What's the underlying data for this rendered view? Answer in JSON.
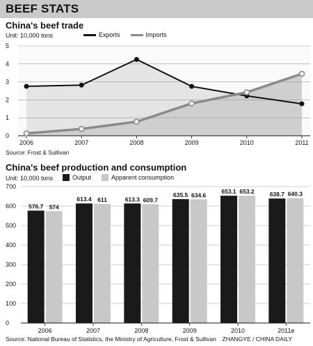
{
  "header": {
    "title": "BEEF STATS"
  },
  "trade": {
    "title": "China's beef trade",
    "unit": "Unit: 10,000 tons",
    "source": "Source: Frost & Sullivan"
  },
  "production": {
    "title": "China's beef production and consumption",
    "unit": "Unit: 10,000 tons",
    "source": "Source: National Bureau of Statistics, the Ministry of Agriculture, Frost & Sullivan",
    "credit": "ZHANGYE / CHINA DAILY"
  },
  "chart_data": [
    {
      "type": "line",
      "title": "China's beef trade",
      "unit": "Unit: 10,000 tons",
      "x": [
        "2006",
        "2007",
        "2008",
        "2009",
        "2010",
        "2011"
      ],
      "ylim": [
        0,
        5
      ],
      "yticks": [
        "0",
        "1",
        "2",
        "3",
        "4",
        "5"
      ],
      "grid": true,
      "series": [
        {
          "name": "Exports",
          "color": "#111111",
          "values": [
            2.75,
            2.82,
            4.25,
            2.75,
            2.22,
            1.78
          ]
        },
        {
          "name": "Imports",
          "color": "#8a8a8a",
          "values": [
            0.13,
            0.38,
            0.78,
            1.8,
            2.42,
            3.45
          ]
        }
      ]
    },
    {
      "type": "bar",
      "title": "China's beef production and consumption",
      "unit": "Unit: 10,000 tons",
      "categories": [
        "2006",
        "2007",
        "2008",
        "2009",
        "2010",
        "2011e"
      ],
      "ylim": [
        0,
        700
      ],
      "yticks": [
        "0",
        "100",
        "200",
        "300",
        "400",
        "500",
        "600",
        "700"
      ],
      "grid": true,
      "series": [
        {
          "name": "Output",
          "color": "#1a1a1a",
          "values": [
            576.7,
            613.4,
            613.3,
            635.5,
            653.1,
            638.7
          ]
        },
        {
          "name": "Apparent consumption",
          "color": "#c8c8c8",
          "values": [
            574,
            611,
            609.7,
            634.6,
            653.2,
            640.3
          ]
        }
      ],
      "data_labels": [
        [
          "576.7",
          "613.4",
          "613.3",
          "635.5",
          "653.1",
          "638.7"
        ],
        [
          "574",
          "611",
          "609.7",
          "634.6",
          "653.2",
          "640.3"
        ]
      ]
    }
  ]
}
